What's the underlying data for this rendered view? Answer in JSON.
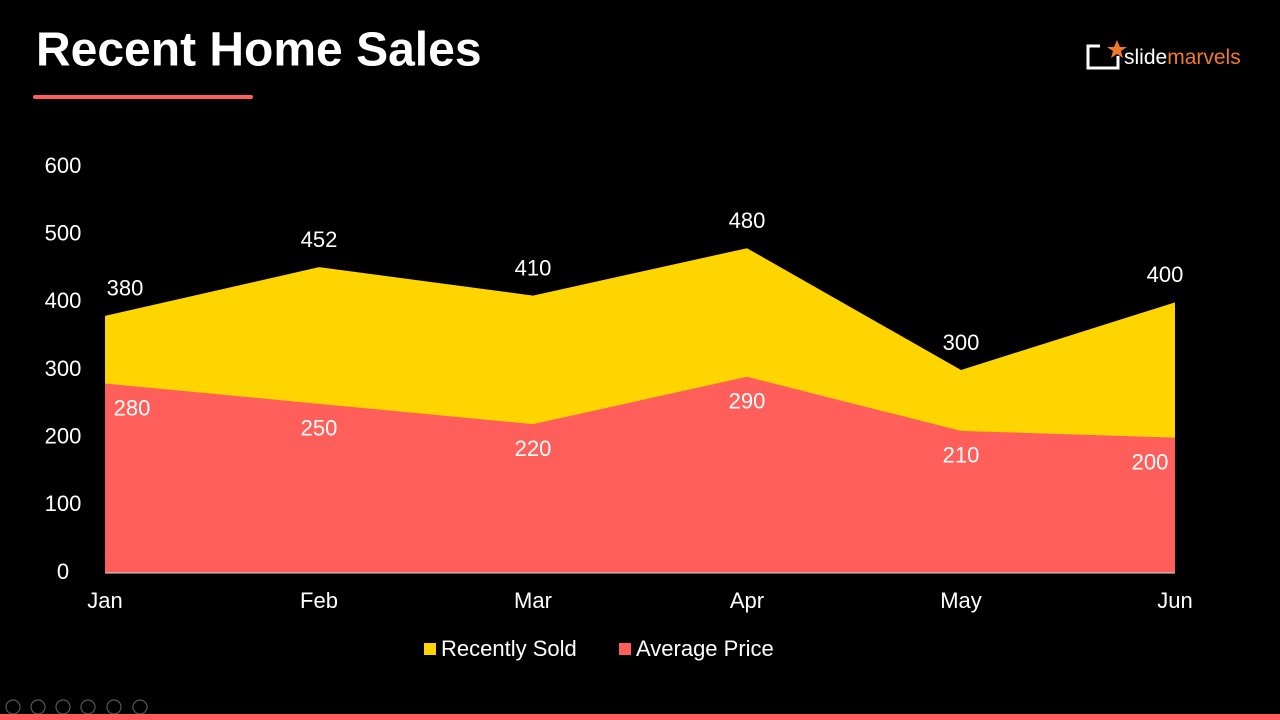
{
  "title": "Recent Home Sales",
  "logo": [
    "slide",
    "marvels"
  ],
  "chart_data": {
    "type": "area",
    "categories": [
      "Jan",
      "Feb",
      "Mar",
      "Apr",
      "May",
      "Jun"
    ],
    "series": [
      {
        "name": "Recently Sold",
        "color": "#ffd500",
        "values": [
          380,
          452,
          410,
          480,
          300,
          400
        ]
      },
      {
        "name": "Average Price",
        "color": "#ff5f5a",
        "values": [
          280,
          250,
          220,
          290,
          210,
          200
        ]
      }
    ],
    "ylim": [
      0,
      600
    ],
    "yticks": [
      0,
      100,
      200,
      300,
      400,
      500,
      600
    ],
    "grid": false
  }
}
